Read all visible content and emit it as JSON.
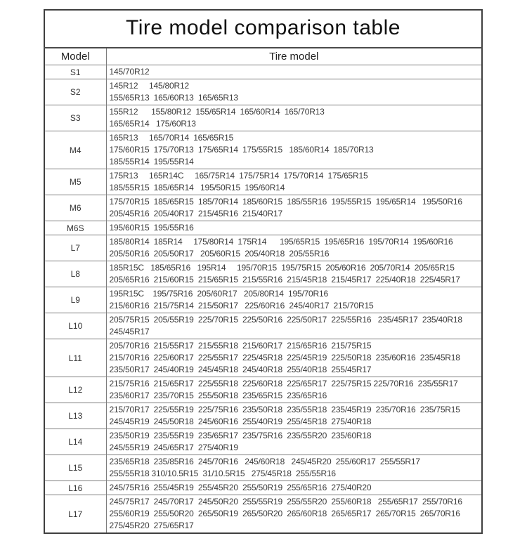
{
  "title": "Tire model comparison table",
  "table": {
    "headers": {
      "model": "Model",
      "tire_model": "Tire model"
    },
    "rows": [
      {
        "model": "S1",
        "lines": [
          "145/70R12"
        ]
      },
      {
        "model": "S2",
        "lines": [
          "145R12     145/80R12",
          "155/65R13  165/60R13  165/65R13"
        ]
      },
      {
        "model": "S3",
        "lines": [
          "155R12      155/80R12  155/65R14  165/60R14  165/70R13",
          "165/65R14   175/60R13"
        ]
      },
      {
        "model": "M4",
        "lines": [
          "165R13     165/70R14  165/65R15",
          "175/60R15  175/70R13  175/65R14  175/55R15   185/60R14  185/70R13",
          "185/55R14  195/55R14"
        ]
      },
      {
        "model": "M5",
        "lines": [
          "175R13     165R14C     165/75R14  175/75R14  175/70R14  175/65R15",
          "185/55R15  185/65R14   195/50R15  195/60R14"
        ]
      },
      {
        "model": "M6",
        "lines": [
          "175/70R15  185/65R15  185/70R14  185/60R15  185/55R16  195/55R15  195/65R14   195/50R16",
          "205/45R16  205/40R17  215/45R16  215/40R17"
        ]
      },
      {
        "model": "M6S",
        "lines": [
          "195/60R15  195/55R16"
        ]
      },
      {
        "model": "L7",
        "lines": [
          "185/80R14  185R14     175/80R14  175R14      195/65R15  195/65R16  195/70R14  195/60R16",
          "205/50R16  205/50R17   205/60R15  205/40R18  205/55R16"
        ]
      },
      {
        "model": "L8",
        "lines": [
          "185R15C   185/65R16   195R14     195/70R15  195/75R15  205/60R16  205/70R14  205/65R15",
          "205/65R16  215/60R15  215/65R15  215/55R16  215/45R18  215/45R17  225/40R18  225/45R17"
        ]
      },
      {
        "model": "L9",
        "lines": [
          "195R15C    195/75R16  205/60R17   205/80R14  195/70R16",
          "215/60R16  215/75R14  215/50R17   225/60R16  245/40R17  215/70R15"
        ]
      },
      {
        "model": "L10",
        "lines": [
          "205/75R15  205/55R19  225/70R15  225/50R16  225/50R17  225/55R16   235/45R17  235/40R18",
          "245/45R17"
        ]
      },
      {
        "model": "L11",
        "lines": [
          "205/70R16  215/55R17  215/55R18  215/60R17  215/65R16  215/75R15",
          "215/70R16  225/60R17  225/55R17  225/45R18  225/45R19  225/50R18  235/60R16  235/45R18",
          "235/50R17  245/40R19  245/45R18  245/40R18  255/40R18  255/45R17"
        ]
      },
      {
        "model": "L12",
        "lines": [
          "215/75R16  215/65R17  225/55R18  225/60R18  225/65R17  225/75R15 225/70R16  235/55R17",
          "235/60R17  235/70R15  255/50R18  235/65R15  235/65R16"
        ]
      },
      {
        "model": "L13",
        "lines": [
          "215/70R17  225/55R19  225/75R16  235/50R18  235/55R18  235/45R19  235/70R16  235/75R15",
          "245/45R19  245/50R18  245/60R16  255/40R19  255/45R18  275/40R18"
        ]
      },
      {
        "model": "L14",
        "lines": [
          "235/50R19  235/55R19  235/65R17  235/75R16  235/55R20  235/60R18",
          "245/55R19  245/65R17  275/40R19"
        ]
      },
      {
        "model": "L15",
        "lines": [
          "235/65R18  235/85R16  245/70R16   245/60R18   245/45R20  255/60R17  255/55R17",
          "255/55R18 310/10.5R15  31/10.5R15   275/45R18  255/55R16"
        ]
      },
      {
        "model": "L16",
        "lines": [
          "245/75R16  255/45R19  255/45R20  255/50R19  255/65R16  275/40R20"
        ]
      },
      {
        "model": "L17",
        "lines": [
          "245/75R17  245/70R17  245/50R20  255/55R19  255/55R20  255/60R18   255/65R17  255/70R16",
          "255/60R19  255/50R20  265/50R19  265/50R20  265/60R18  265/65R17  265/70R15  265/70R16",
          "275/45R20  275/65R17"
        ]
      }
    ]
  }
}
